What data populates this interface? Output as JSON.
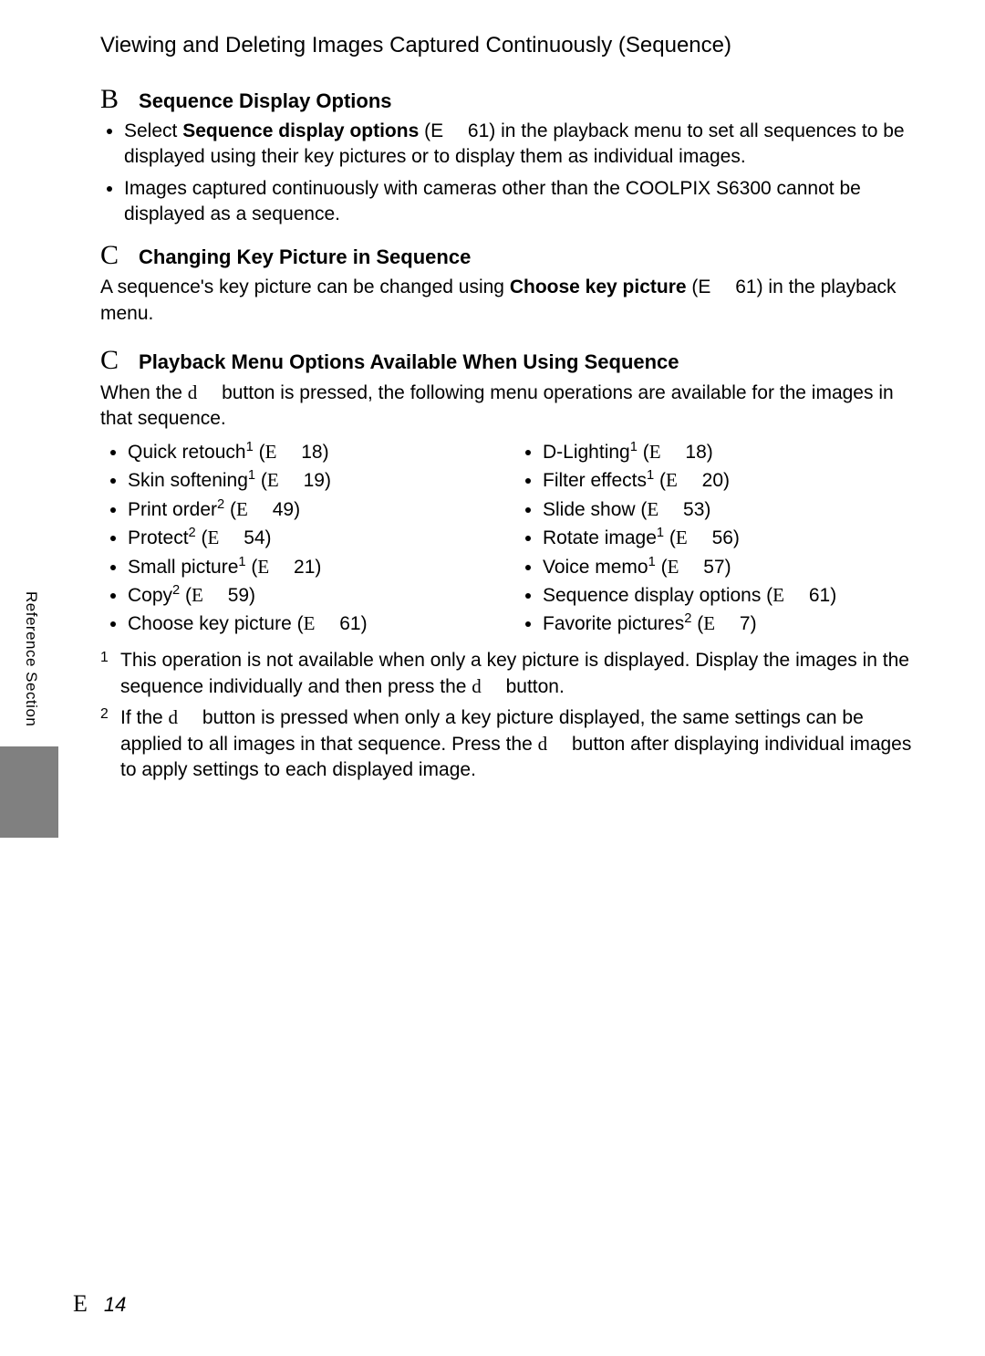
{
  "title": "Viewing and Deleting Images Captured Continuously (Sequence)",
  "sectionB": {
    "icon": "B",
    "heading": "Sequence Display Options",
    "bullet1_pre": "Select ",
    "bullet1_bold": "Sequence display options",
    "bullet1_post": " (E  61) in the playback menu to set all sequences to be displayed using their key pictures or to display them as individual images.",
    "bullet2": "Images captured continuously with cameras other than the COOLPIX S6300 cannot be displayed as a sequence."
  },
  "sectionC1": {
    "icon": "C",
    "heading": "Changing Key Picture in Sequence",
    "body_pre": "A sequence's key picture can be changed using ",
    "body_bold": "Choose key picture",
    "body_post": " (E  61) in the playback menu."
  },
  "sectionC2": {
    "icon": "C",
    "heading": "Playback Menu Options Available When Using Sequence",
    "body_pre": "When the ",
    "body_d": "d",
    "body_post": " button is pressed, the following menu operations are available for the images in that sequence.",
    "left": [
      {
        "t": "Quick retouch",
        "s": "1",
        "r": "18"
      },
      {
        "t": "Skin softening",
        "s": "1",
        "r": "19"
      },
      {
        "t": "Print order",
        "s": "2",
        "r": "49"
      },
      {
        "t": "Protect",
        "s": "2",
        "r": "54"
      },
      {
        "t": "Small picture",
        "s": "1",
        "r": "21"
      },
      {
        "t": "Copy",
        "s": "2",
        "r": "59"
      },
      {
        "t": "Choose key picture",
        "s": "",
        "r": "61"
      }
    ],
    "right": [
      {
        "t": "D-Lighting",
        "s": "1",
        "r": "18"
      },
      {
        "t": "Filter effects",
        "s": "1",
        "r": "20"
      },
      {
        "t": "Slide show",
        "s": "",
        "r": "53"
      },
      {
        "t": "Rotate image",
        "s": "1",
        "r": "56"
      },
      {
        "t": "Voice memo",
        "s": "1",
        "r": "57"
      },
      {
        "t": "Sequence display options",
        "s": "",
        "r": "61"
      },
      {
        "t": "Favorite pictures",
        "s": "2",
        "r": "7"
      }
    ]
  },
  "footnotes": {
    "f1_num": "1",
    "f1_a": "This operation is not available when only a key picture is displayed. Display the images in the sequence individually and then press the ",
    "f1_d": "d",
    "f1_b": " button.",
    "f2_num": "2",
    "f2_a": "If the ",
    "f2_d1": "d",
    "f2_b": " button is pressed when only a key picture displayed, the same settings can be applied to all images in that sequence. Press the ",
    "f2_d2": "d",
    "f2_c": " button after displaying individual images to apply settings to each displayed image."
  },
  "sideTab": "Reference Section",
  "pageNumber": {
    "sym": "E",
    "num": "14"
  }
}
